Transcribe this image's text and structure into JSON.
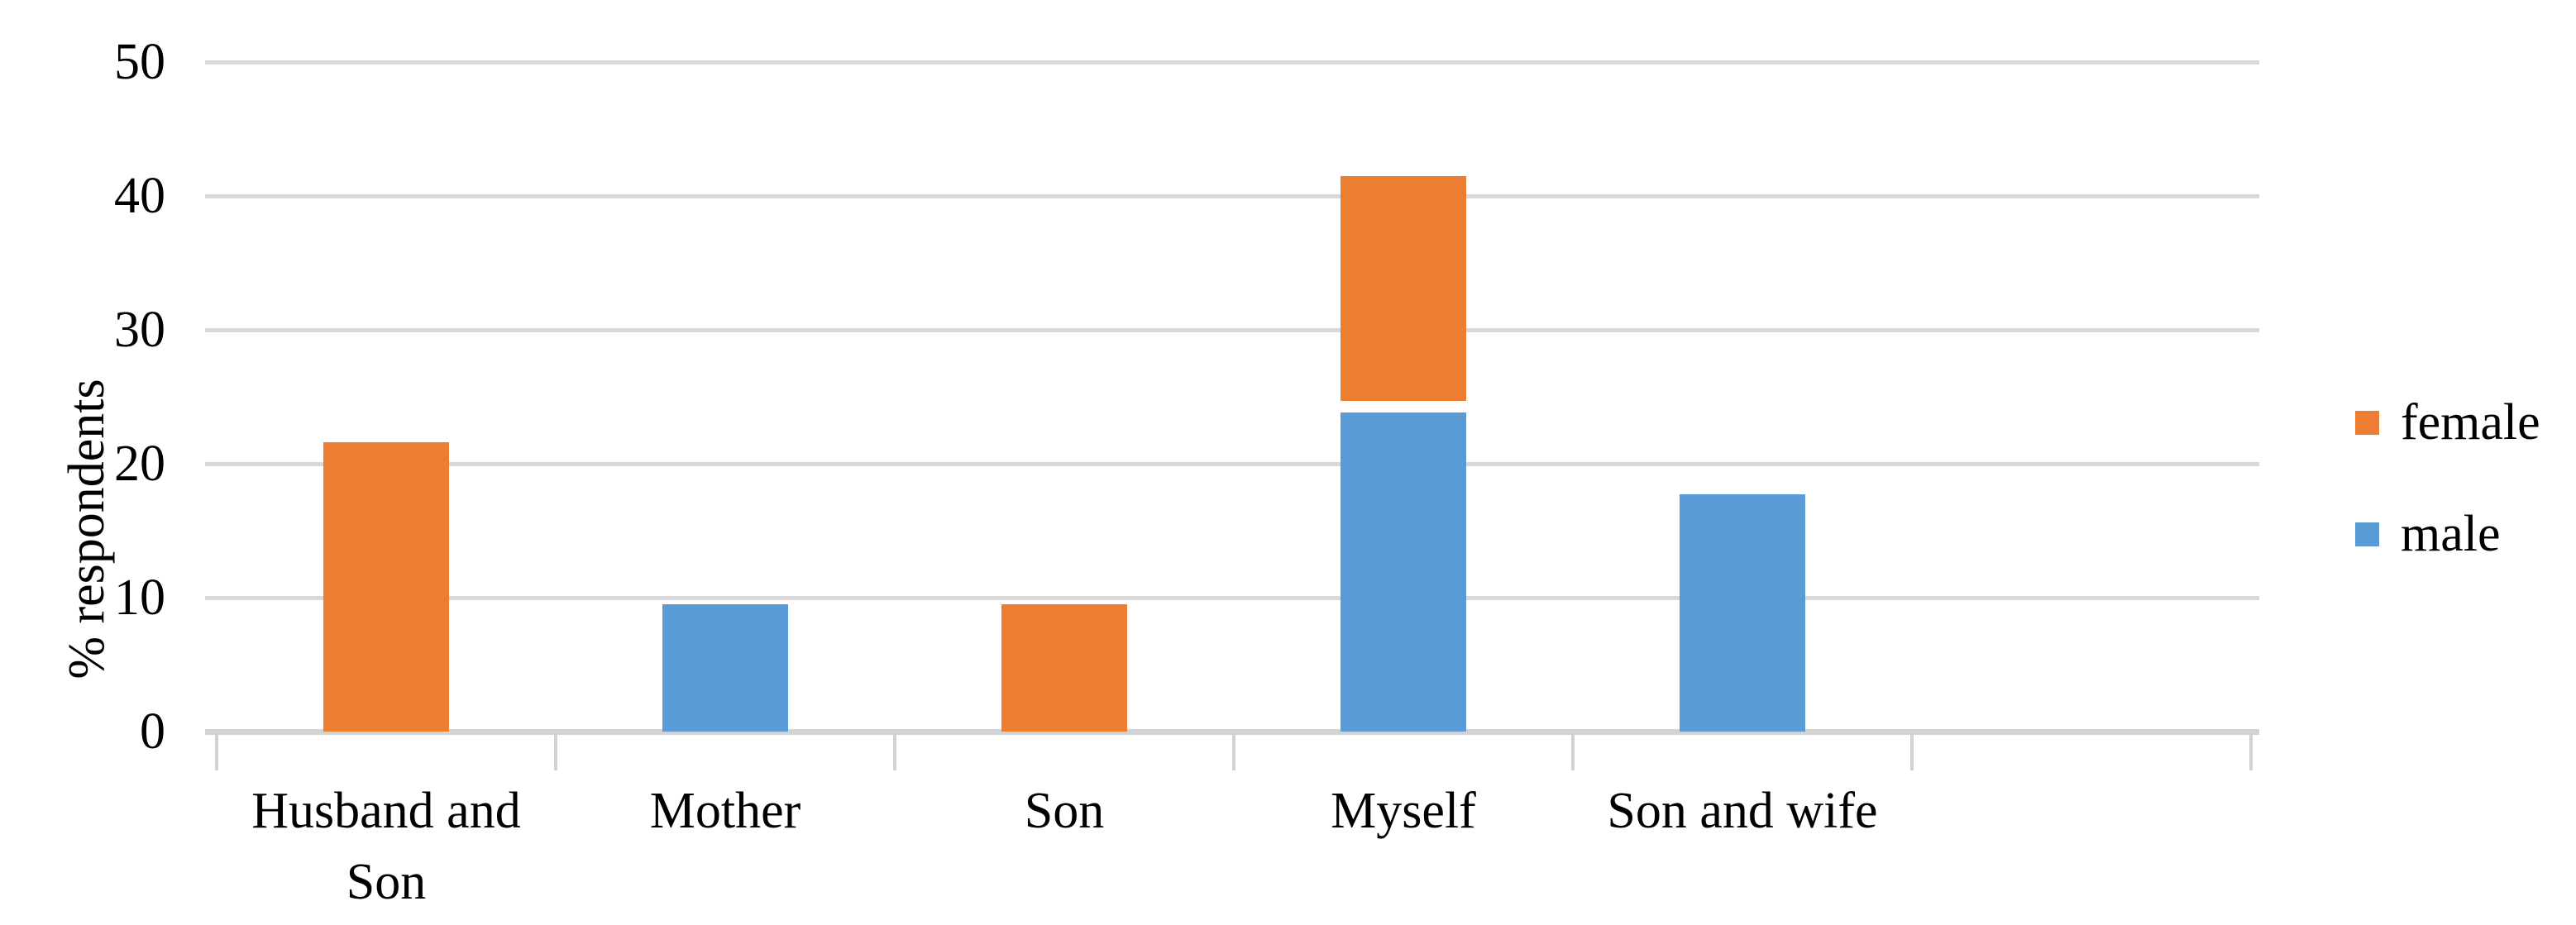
{
  "chart_data": {
    "type": "bar",
    "stacked": true,
    "title": "",
    "xlabel": "",
    "ylabel": "% respondents",
    "ylim": [
      0,
      50
    ],
    "yticks": [
      0,
      10,
      20,
      30,
      40,
      50
    ],
    "grid": true,
    "legend_position": "right",
    "categories": [
      "Husband and Son",
      "Mother",
      "Son",
      "Myself",
      "Son and wife"
    ],
    "series": [
      {
        "name": "male",
        "color": "#5B9BD5",
        "values": [
          0,
          9.5,
          0,
          23.8,
          17.7
        ]
      },
      {
        "name": "female",
        "color": "#ED7D31",
        "values": [
          21.6,
          0,
          9.5,
          17.7,
          0
        ]
      }
    ]
  },
  "legend": {
    "items": [
      {
        "label": "female",
        "color": "#ED7D31"
      },
      {
        "label": "male",
        "color": "#5B9BD5"
      }
    ]
  },
  "colors": {
    "female": "#ED7D31",
    "male": "#5B9BD5",
    "gridline": "#D9D9D9",
    "axis_line": "#D2D2D2",
    "text": "#000000",
    "background": "#FFFFFF"
  }
}
